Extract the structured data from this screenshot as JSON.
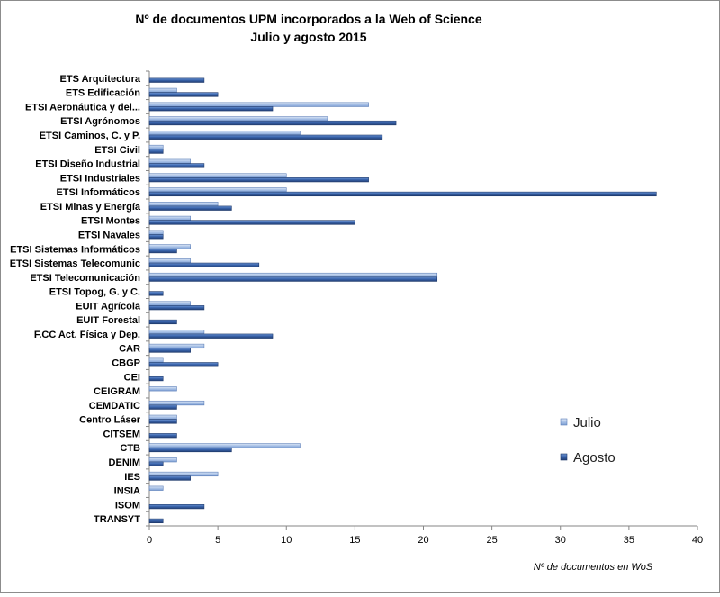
{
  "chart_data": {
    "type": "bar",
    "orientation": "horizontal",
    "title": [
      "Nº de documentos UPM incorporados a la Web of Science",
      "Julio y agosto 2015"
    ],
    "xlabel": "Nº de documentos en WoS",
    "ylabel": "",
    "xlim": [
      0,
      40
    ],
    "xticks": [
      0,
      5,
      10,
      15,
      20,
      25,
      30,
      35,
      40
    ],
    "grid": false,
    "legend_position": "right",
    "categories": [
      "ETS Arquitectura",
      "ETS Edificación",
      "ETSI Aeronáutica y del...",
      "ETSI Agrónomos",
      "ETSI Caminos, C. y P.",
      "ETSI Civil",
      "ETSI Diseño Industrial",
      "ETSI Industriales",
      "ETSI Informáticos",
      "ETSI Minas y Energía",
      "ETSI Montes",
      "ETSI Navales",
      "ETSI Sistemas Informáticos",
      "ETSI Sistemas Telecomunic",
      "ETSI Telecomunicación",
      "ETSI Topog, G. y C.",
      "EUIT Agrícola",
      "EUIT Forestal",
      "F.CC Act. Física y Dep.",
      "CAR",
      "CBGP",
      "CEI",
      "CEIGRAM",
      "CEMDATIC",
      "Centro Láser",
      "CITSEM",
      "CTB",
      "DENIM",
      "IES",
      "INSIA",
      "ISOM",
      "TRANSYT"
    ],
    "series": [
      {
        "name": "Julio",
        "color": "#9db8e1",
        "values": [
          0,
          2,
          16,
          13,
          11,
          1,
          3,
          10,
          10,
          5,
          3,
          1,
          3,
          3,
          21,
          0,
          3,
          0,
          4,
          4,
          1,
          0,
          2,
          4,
          2,
          0,
          11,
          2,
          5,
          1,
          0,
          0
        ]
      },
      {
        "name": "Agosto",
        "color": "#3a65ad",
        "values": [
          4,
          5,
          9,
          18,
          17,
          1,
          4,
          16,
          37,
          6,
          15,
          1,
          2,
          8,
          21,
          1,
          4,
          2,
          9,
          3,
          5,
          1,
          0,
          2,
          2,
          2,
          6,
          1,
          3,
          0,
          4,
          1
        ]
      }
    ]
  }
}
